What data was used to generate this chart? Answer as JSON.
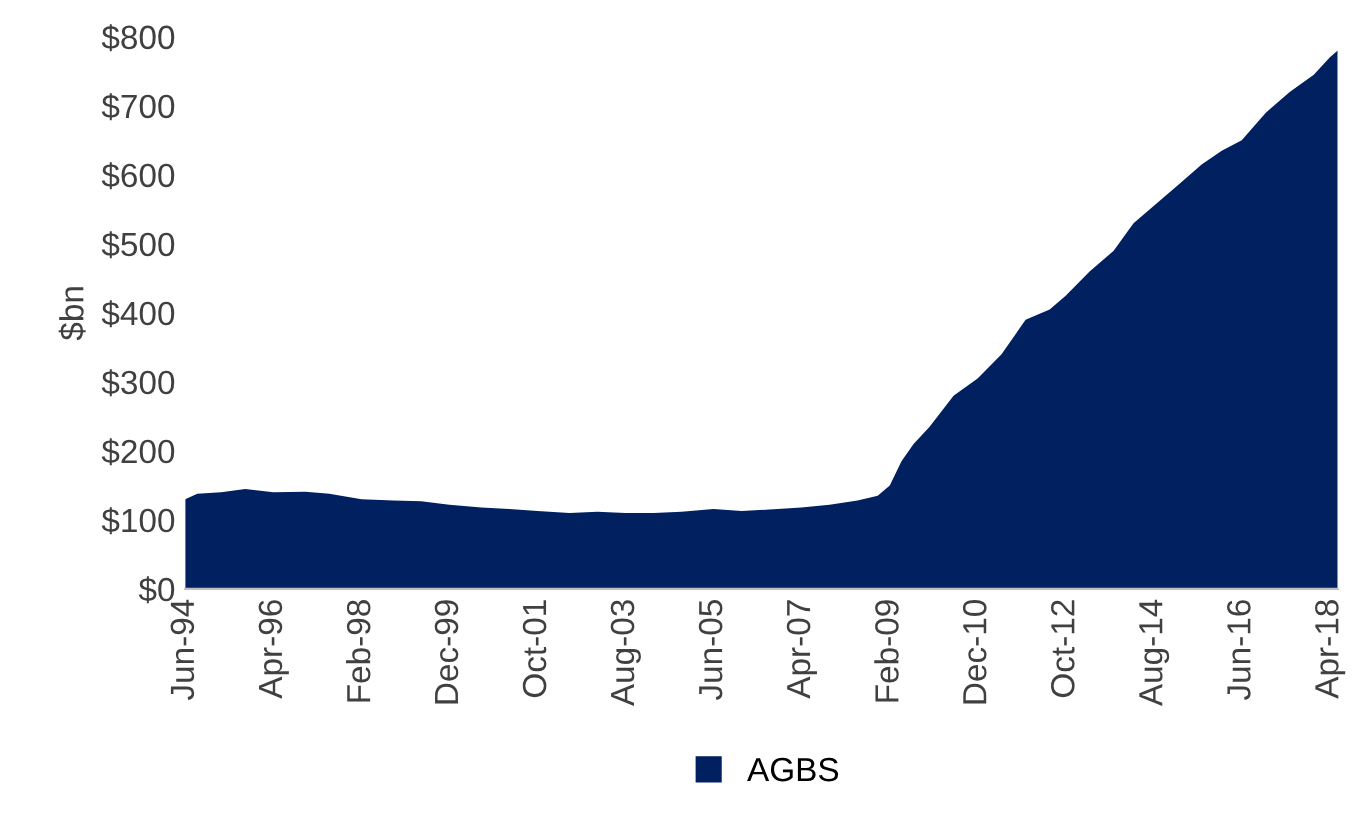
{
  "chart_data": {
    "type": "area",
    "ylabel": "$bn",
    "x": [
      "1994-06",
      "1994-09",
      "1995-03",
      "1995-09",
      "1996-04",
      "1996-12",
      "1997-06",
      "1998-02",
      "1998-10",
      "1999-05",
      "1999-12",
      "2000-08",
      "2001-03",
      "2001-10",
      "2002-06",
      "2003-01",
      "2003-08",
      "2004-03",
      "2004-10",
      "2005-06",
      "2006-01",
      "2006-08",
      "2007-04",
      "2007-11",
      "2008-06",
      "2008-11",
      "2009-02",
      "2009-05",
      "2009-08",
      "2009-12",
      "2010-06",
      "2010-12",
      "2011-06",
      "2011-12",
      "2012-06",
      "2012-10",
      "2013-04",
      "2013-10",
      "2014-03",
      "2014-08",
      "2015-02",
      "2015-08",
      "2016-01",
      "2016-06",
      "2016-12",
      "2017-06",
      "2017-12",
      "2018-04",
      "2018-06"
    ],
    "series": [
      {
        "name": "AGBS",
        "color": "#002060",
        "values": [
          130,
          138,
          140,
          145,
          140,
          141,
          138,
          130,
          128,
          127,
          122,
          118,
          116,
          113,
          110,
          112,
          110,
          110,
          112,
          116,
          113,
          115,
          118,
          122,
          128,
          135,
          150,
          185,
          210,
          235,
          280,
          305,
          340,
          390,
          405,
          425,
          460,
          490,
          530,
          555,
          585,
          615,
          635,
          650,
          690,
          720,
          745,
          770,
          780
        ]
      }
    ],
    "xlim": [
      "1994-06",
      "2018-06"
    ],
    "xticks": [
      {
        "value": "1994-06",
        "label": "Jun-94"
      },
      {
        "value": "1996-04",
        "label": "Apr-96"
      },
      {
        "value": "1998-02",
        "label": "Feb-98"
      },
      {
        "value": "1999-12",
        "label": "Dec-99"
      },
      {
        "value": "2001-10",
        "label": "Oct-01"
      },
      {
        "value": "2003-08",
        "label": "Aug-03"
      },
      {
        "value": "2005-06",
        "label": "Jun-05"
      },
      {
        "value": "2007-04",
        "label": "Apr-07"
      },
      {
        "value": "2009-02",
        "label": "Feb-09"
      },
      {
        "value": "2010-12",
        "label": "Dec-10"
      },
      {
        "value": "2012-10",
        "label": "Oct-12"
      },
      {
        "value": "2014-08",
        "label": "Aug-14"
      },
      {
        "value": "2016-06",
        "label": "Jun-16"
      },
      {
        "value": "2018-04",
        "label": "Apr-18"
      }
    ],
    "ylim": [
      0,
      800
    ],
    "yticks": [
      {
        "value": 0,
        "label": "$0"
      },
      {
        "value": 100,
        "label": "$100"
      },
      {
        "value": 200,
        "label": "$200"
      },
      {
        "value": 300,
        "label": "$300"
      },
      {
        "value": 400,
        "label": "$400"
      },
      {
        "value": 500,
        "label": "$500"
      },
      {
        "value": 600,
        "label": "$600"
      },
      {
        "value": 700,
        "label": "$700"
      },
      {
        "value": 800,
        "label": "$800"
      }
    ],
    "legend": "bottom",
    "grid": false
  }
}
